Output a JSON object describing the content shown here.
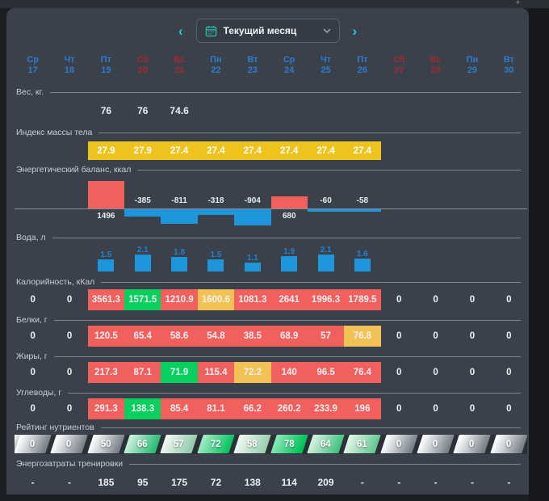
{
  "colors": {
    "red": "#f2605d",
    "green": "#07d05e",
    "yellow": "#f3c254",
    "bmi_yellow": "#eec31d",
    "blue": "#1e96dc",
    "day_blue": "#2e7ccb",
    "day_red": "#9f2b31",
    "accent_cyan": "#2bc8d9"
  },
  "header": {
    "prev": "‹",
    "next": "›",
    "period": "Текущий месяц",
    "plus_artifact": "+"
  },
  "days": [
    {
      "name": "Ср",
      "num": "17",
      "weekend": false
    },
    {
      "name": "Чт",
      "num": "18",
      "weekend": false
    },
    {
      "name": "Пт",
      "num": "19",
      "weekend": false
    },
    {
      "name": "Сб",
      "num": "20",
      "weekend": true
    },
    {
      "name": "Вс",
      "num": "21",
      "weekend": true
    },
    {
      "name": "Пн",
      "num": "22",
      "weekend": false
    },
    {
      "name": "Вт",
      "num": "23",
      "weekend": false
    },
    {
      "name": "Ср",
      "num": "24",
      "weekend": false
    },
    {
      "name": "Чт",
      "num": "25",
      "weekend": false
    },
    {
      "name": "Пт",
      "num": "26",
      "weekend": false
    },
    {
      "name": "Сб",
      "num": "27",
      "weekend": true
    },
    {
      "name": "Вс",
      "num": "28",
      "weekend": true
    },
    {
      "name": "Пн",
      "num": "29",
      "weekend": false
    },
    {
      "name": "Вт",
      "num": "30",
      "weekend": false
    }
  ],
  "weight": {
    "label": "Вес, кг.",
    "values": [
      "",
      "",
      "76",
      "76",
      "74.6",
      "",
      "",
      "",
      "",
      "",
      "",
      "",
      "",
      ""
    ]
  },
  "bmi": {
    "label": "Индекс массы тела",
    "values": [
      "",
      "",
      "27.9",
      "27.9",
      "27.4",
      "27.4",
      "27.4",
      "27.4",
      "27.4",
      "27.4",
      "",
      "",
      "",
      ""
    ]
  },
  "balance": {
    "label": "Энергетический баланс, ккал",
    "values": [
      null,
      null,
      1496,
      -385,
      -811,
      -318,
      -904,
      680,
      -60,
      -58,
      null,
      null,
      null,
      null
    ]
  },
  "water": {
    "label": "Вода, л",
    "values": [
      null,
      null,
      1.5,
      2.1,
      1.8,
      1.5,
      1.1,
      1.9,
      2.1,
      1.6,
      null,
      null,
      null,
      null
    ]
  },
  "nutrient_rows": [
    {
      "key": "calories",
      "label": "Калорийность, кКал",
      "cells": [
        {
          "v": "0"
        },
        {
          "v": "0"
        },
        {
          "v": "3561.3",
          "c": "red"
        },
        {
          "v": "1571.5",
          "c": "green"
        },
        {
          "v": "1210.9",
          "c": "red"
        },
        {
          "v": "1600.6",
          "c": "yellow"
        },
        {
          "v": "1081.3",
          "c": "red"
        },
        {
          "v": "2641",
          "c": "red"
        },
        {
          "v": "1996.3",
          "c": "red"
        },
        {
          "v": "1789.5",
          "c": "red"
        },
        {
          "v": "0"
        },
        {
          "v": "0"
        },
        {
          "v": "0"
        },
        {
          "v": "0"
        }
      ]
    },
    {
      "key": "proteins",
      "label": "Белки, г",
      "cells": [
        {
          "v": "0"
        },
        {
          "v": "0"
        },
        {
          "v": "120.5",
          "c": "red"
        },
        {
          "v": "65.4",
          "c": "red"
        },
        {
          "v": "58.6",
          "c": "red"
        },
        {
          "v": "54.8",
          "c": "red"
        },
        {
          "v": "38.5",
          "c": "red"
        },
        {
          "v": "68.9",
          "c": "red"
        },
        {
          "v": "57",
          "c": "red"
        },
        {
          "v": "76.8",
          "c": "yellow"
        },
        {
          "v": "0"
        },
        {
          "v": "0"
        },
        {
          "v": "0"
        },
        {
          "v": "0"
        }
      ]
    },
    {
      "key": "fats",
      "label": "Жиры, г",
      "cells": [
        {
          "v": "0"
        },
        {
          "v": "0"
        },
        {
          "v": "217.3",
          "c": "red"
        },
        {
          "v": "87.1",
          "c": "red"
        },
        {
          "v": "71.9",
          "c": "green"
        },
        {
          "v": "115.4",
          "c": "red"
        },
        {
          "v": "72.2",
          "c": "yellow"
        },
        {
          "v": "140",
          "c": "red"
        },
        {
          "v": "96.5",
          "c": "red"
        },
        {
          "v": "76.4",
          "c": "red"
        },
        {
          "v": "0"
        },
        {
          "v": "0"
        },
        {
          "v": "0"
        },
        {
          "v": "0"
        }
      ]
    },
    {
      "key": "carbs",
      "label": "Углеводы, г",
      "cells": [
        {
          "v": "0"
        },
        {
          "v": "0"
        },
        {
          "v": "291.3",
          "c": "red"
        },
        {
          "v": "138.3",
          "c": "green"
        },
        {
          "v": "85.4",
          "c": "red"
        },
        {
          "v": "81.1",
          "c": "red"
        },
        {
          "v": "66.2",
          "c": "red"
        },
        {
          "v": "260.2",
          "c": "red"
        },
        {
          "v": "233.9",
          "c": "red"
        },
        {
          "v": "196",
          "c": "red"
        },
        {
          "v": "0"
        },
        {
          "v": "0"
        },
        {
          "v": "0"
        },
        {
          "v": "0"
        }
      ]
    }
  ],
  "rating": {
    "label": "Рейтинг нутриентов",
    "badges": [
      {
        "v": "0",
        "g": [
          "#ffffff 5%",
          "#c3c8cd 45%",
          "#787e86 95%"
        ]
      },
      {
        "v": "0",
        "g": [
          "#ffffff 5%",
          "#c3c8cd 45%",
          "#787e86 95%"
        ]
      },
      {
        "v": "50",
        "g": [
          "#ffffff 5%",
          "#c3c8cd 45%",
          "#787e86 95%"
        ]
      },
      {
        "v": "66",
        "g": [
          "#c4efd7 8%",
          "#2ebd76 92%"
        ]
      },
      {
        "v": "57",
        "g": [
          "#eef6f1 8%",
          "#92ccab 92%"
        ]
      },
      {
        "v": "72",
        "g": [
          "#9ae8c0 8%",
          "#0cc463 92%"
        ]
      },
      {
        "v": "58",
        "g": [
          "#ecf6f0 8%",
          "#9ad0b0 92%"
        ]
      },
      {
        "v": "78",
        "g": [
          "#86e5b4 8%",
          "#00c35c 92%"
        ]
      },
      {
        "v": "64",
        "g": [
          "#cff0dd 8%",
          "#46c282 92%"
        ]
      },
      {
        "v": "61",
        "g": [
          "#ddf3e6 8%",
          "#68c893 92%"
        ]
      },
      {
        "v": "0",
        "g": [
          "#ffffff 5%",
          "#c3c8cd 45%",
          "#787e86 95%"
        ]
      },
      {
        "v": "0",
        "g": [
          "#ffffff 5%",
          "#c3c8cd 45%",
          "#787e86 95%"
        ]
      },
      {
        "v": "0",
        "g": [
          "#ffffff 5%",
          "#c3c8cd 45%",
          "#787e86 95%"
        ]
      },
      {
        "v": "0",
        "g": [
          "#ffffff 5%",
          "#c3c8cd 45%",
          "#787e86 95%"
        ]
      }
    ]
  },
  "training": {
    "label": "Энергозатраты тренировки",
    "values": [
      "-",
      "-",
      "185",
      "95",
      "175",
      "72",
      "138",
      "114",
      "209",
      "-",
      "-",
      "-",
      "-",
      "-"
    ]
  }
}
